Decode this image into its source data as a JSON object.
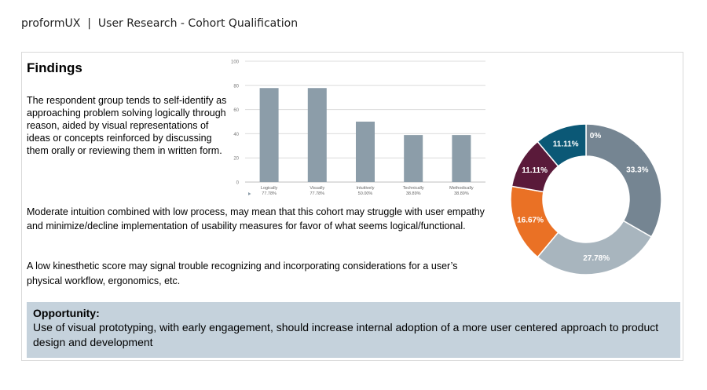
{
  "header": {
    "text": "proformUX  |  User Research - Cohort Qualification"
  },
  "findings": {
    "title": "Findings",
    "p1": "The respondent group tends to self-identify as approaching problem solving logically through reason, aided by visual representations of ideas or concepts reinforced by discussing them orally or reviewing them in written form.",
    "p2": "Moderate intuition combined with low process, may mean that this cohort may struggle with user empathy and minimize/decline implementation of usability measures for favor of what seems logical/functional.",
    "p3": "A low kinesthetic score may signal trouble recognizing and incorporating considerations for a user’s physical workflow, ergonomics, etc."
  },
  "opportunity": {
    "heading": "Opportunity:",
    "body": "Use of visual prototyping, with early engagement, should increase internal adoption of a more user centered approach to product design and development"
  },
  "chart_data": [
    {
      "type": "bar",
      "categories": [
        "Logically",
        "Visually",
        "Intuitively",
        "Technically",
        "Methodically"
      ],
      "values": [
        77.78,
        77.78,
        50.0,
        38.89,
        38.89
      ],
      "value_labels": [
        "77.78%",
        "77.78%",
        "50.00%",
        "38.89%",
        "38.89%"
      ],
      "ylim": [
        0,
        100
      ],
      "yticks": [
        0,
        20,
        40,
        60,
        80,
        100
      ],
      "grid": true,
      "color": "#8c9da9"
    },
    {
      "type": "pie",
      "donut": true,
      "values": [
        33.3,
        27.78,
        16.67,
        11.11,
        11.11,
        0
      ],
      "labels": [
        "33.3%",
        "27.78%",
        "16.67%",
        "11.11%",
        "11.11%",
        "0%"
      ],
      "colors": [
        "#758592",
        "#a8b5be",
        "#ea7125",
        "#5a1a3a",
        "#0b5876",
        "#0b5876"
      ]
    }
  ]
}
